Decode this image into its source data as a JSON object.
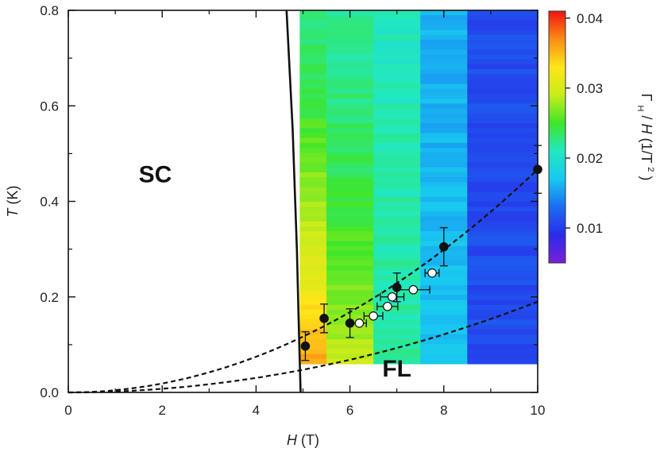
{
  "chart_data": {
    "type": "scatter",
    "title": "",
    "xlabel": {
      "italic": "H",
      "unit": "(T)"
    },
    "ylabel": {
      "italic": "T",
      "unit": "(K)"
    },
    "xlim": [
      0,
      10
    ],
    "ylim": [
      0,
      0.8
    ],
    "x_ticks": [
      "0",
      "2",
      "4",
      "6",
      "8",
      "10"
    ],
    "y_ticks": [
      "0.0",
      "0.2",
      "0.4",
      "0.6",
      "0.8"
    ],
    "region_labels": {
      "sc": "SC",
      "fl": "FL"
    },
    "heatmap": {
      "t_min": 0.06,
      "t_max": 0.8,
      "columns": [
        {
          "h0": 4.93,
          "h1": 5.5,
          "value": 0.036,
          "top_value": 0.023
        },
        {
          "h0": 5.5,
          "h1": 6.5,
          "value": 0.029,
          "top_value": 0.022
        },
        {
          "h0": 6.5,
          "h1": 7.5,
          "value": 0.022,
          "top_value": 0.021
        },
        {
          "h0": 7.5,
          "h1": 8.5,
          "value": 0.017,
          "top_value": 0.016
        },
        {
          "h0": 8.5,
          "h1": 10.0,
          "value": 0.011,
          "top_value": 0.011
        }
      ]
    },
    "colorbar": {
      "range": [
        0.005,
        0.041
      ],
      "ticks": [
        "0.01",
        "0.02",
        "0.03",
        "0.04"
      ],
      "label": "Γ_H/H (1/T²)",
      "label_parts": {
        "gamma": "Γ",
        "sub": "H",
        "mid": "/",
        "h": "H",
        "unit_pre": " (1/T",
        "sup": "2",
        "unit_post": ")"
      },
      "colors": [
        "#7a1fd8",
        "#2a2ce8",
        "#1a6cf2",
        "#19c8f0",
        "#22e8c0",
        "#3ee62a",
        "#c8ec1a",
        "#fde619",
        "#fb8c14",
        "#f01414"
      ]
    },
    "series": [
      {
        "name": "filled circles",
        "style": "filled",
        "points": [
          {
            "h": 5.05,
            "t": 0.097,
            "err_t": 0.03
          },
          {
            "h": 5.45,
            "t": 0.155,
            "err_t": 0.03
          },
          {
            "h": 6.0,
            "t": 0.145,
            "err_t": 0.03
          },
          {
            "h": 7.0,
            "t": 0.22,
            "err_t": 0.03
          },
          {
            "h": 8.0,
            "t": 0.305,
            "err_t": 0.04
          },
          {
            "h": 10.0,
            "t": 0.467,
            "err_t": 0.05
          }
        ]
      },
      {
        "name": "open circles",
        "style": "open",
        "points": [
          {
            "h": 6.2,
            "t": 0.145,
            "err_h": 0.15
          },
          {
            "h": 6.5,
            "t": 0.16,
            "err_h": 0.2
          },
          {
            "h": 6.8,
            "t": 0.18,
            "err_h": 0.22
          },
          {
            "h": 6.9,
            "t": 0.2,
            "err_h": 0.25
          },
          {
            "h": 7.35,
            "t": 0.215,
            "err_h": 0.35
          },
          {
            "h": 7.75,
            "t": 0.25,
            "err_h": 0.15
          }
        ]
      }
    ],
    "curves": [
      {
        "name": "Hc2 boundary",
        "style": "solid",
        "points": [
          [
            4.65,
            0.8
          ],
          [
            4.78,
            0.55
          ],
          [
            4.87,
            0.3
          ],
          [
            4.92,
            0.1
          ],
          [
            4.95,
            0.0
          ]
        ]
      },
      {
        "name": "dashed upper",
        "style": "dashed",
        "a": 0.00467,
        "exp": 2
      },
      {
        "name": "dashed lower",
        "style": "dashed",
        "a": 0.0019,
        "exp": 2
      }
    ]
  }
}
